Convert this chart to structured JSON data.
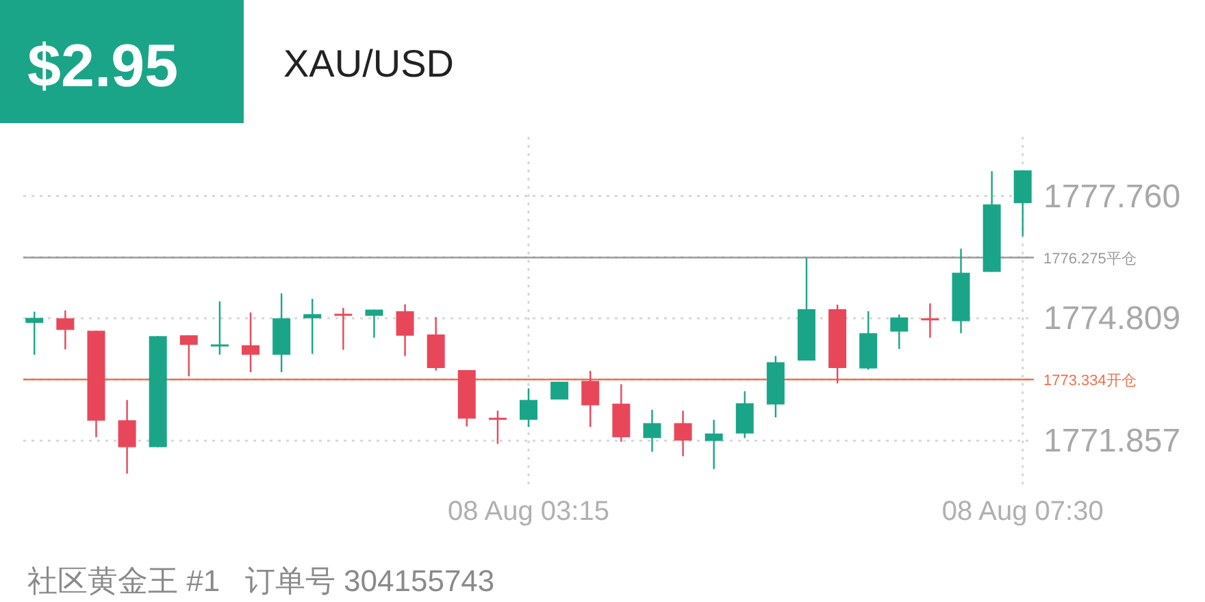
{
  "chart_data": {
    "type": "candlestick",
    "title": "XAU/USD",
    "subtitle": "$2.95",
    "annotations": [
      "社区黄金王 #1   订单号 304155743"
    ],
    "categories": [
      null,
      null,
      null,
      null,
      null,
      null,
      null,
      null,
      null,
      null,
      null,
      null,
      null,
      null,
      null,
      null,
      "08 Aug 03:15",
      null,
      null,
      null,
      null,
      null,
      null,
      null,
      null,
      null,
      null,
      null,
      null,
      null,
      null,
      null,
      "08 Aug 07:30"
    ],
    "ohlc": [
      [
        1774.7,
        1774.97,
        1773.93,
        1774.82
      ],
      [
        1774.81,
        1775.0,
        1774.06,
        1774.53
      ],
      [
        1774.51,
        1774.51,
        1771.94,
        1772.34
      ],
      [
        1772.35,
        1772.84,
        1771.06,
        1771.7
      ],
      [
        1771.7,
        1774.38,
        1771.7,
        1774.38
      ],
      [
        1774.4,
        1774.4,
        1773.41,
        1774.17
      ],
      [
        1774.13,
        1775.22,
        1773.93,
        1774.18
      ],
      [
        1774.16,
        1774.95,
        1773.51,
        1773.93
      ],
      [
        1773.93,
        1775.41,
        1773.51,
        1774.81
      ],
      [
        1774.81,
        1775.28,
        1773.95,
        1774.91
      ],
      [
        1774.92,
        1775.06,
        1774.05,
        1774.88
      ],
      [
        1774.87,
        1775.02,
        1774.34,
        1775.02
      ],
      [
        1774.98,
        1775.15,
        1773.9,
        1774.39
      ],
      [
        1774.42,
        1774.84,
        1773.55,
        1773.61
      ],
      [
        1773.56,
        1773.56,
        1772.2,
        1772.39
      ],
      [
        1772.41,
        1772.58,
        1771.78,
        1772.39
      ],
      [
        1772.36,
        1773.12,
        1772.19,
        1772.84
      ],
      [
        1772.85,
        1773.28,
        1772.85,
        1773.28
      ],
      [
        1773.3,
        1773.54,
        1772.19,
        1772.71
      ],
      [
        1772.75,
        1773.22,
        1771.83,
        1771.94
      ],
      [
        1771.92,
        1772.6,
        1771.59,
        1772.28
      ],
      [
        1772.28,
        1772.58,
        1771.48,
        1771.86
      ],
      [
        1771.85,
        1772.36,
        1771.17,
        1772.03
      ],
      [
        1772.03,
        1773.05,
        1771.92,
        1772.76
      ],
      [
        1772.73,
        1773.9,
        1772.42,
        1773.75
      ],
      [
        1773.79,
        1776.27,
        1773.79,
        1775.03
      ],
      [
        1775.03,
        1775.14,
        1773.24,
        1773.61
      ],
      [
        1773.6,
        1774.98,
        1773.57,
        1774.45
      ],
      [
        1774.49,
        1774.9,
        1774.07,
        1774.83
      ],
      [
        1774.81,
        1775.17,
        1774.34,
        1774.77
      ],
      [
        1774.74,
        1776.49,
        1774.45,
        1775.91
      ],
      [
        1775.93,
        1778.36,
        1775.93,
        1777.56
      ],
      [
        1777.59,
        1778.38,
        1776.79,
        1778.38
      ]
    ],
    "colors": [
      "#1aa588",
      "#e8475a",
      "#e8475a",
      "#e8475a",
      "#1aa588",
      "#e8475a",
      "#1aa588",
      "#e8475a",
      "#1aa588",
      "#1aa588",
      "#e8475a",
      "#1aa588",
      "#e8475a",
      "#e8475a",
      "#e8475a",
      "#e8475a",
      "#1aa588",
      "#1aa588",
      "#e8475a",
      "#e8475a",
      "#1aa588",
      "#e8475a",
      "#1aa588",
      "#1aa588",
      "#1aa588",
      "#1aa588",
      "#e8475a",
      "#1aa588",
      "#1aa588",
      "#e8475a",
      "#1aa588",
      "#1aa588",
      "#1aa588"
    ],
    "ylim": [
      1770.77,
      1779.19
    ],
    "yticks": [
      1771.857,
      {
        "value": 1773.333,
        "label": null
      },
      1774.809,
      {
        "value": 1776.284,
        "label": null
      },
      {
        "value": 1777.76,
        "label": "1777.760"
      }
    ],
    "grid": true,
    "ref_lines": [
      {
        "axis": "y",
        "value": 1776.275,
        "label": "1776.275平仓",
        "color": "#9a9a9a"
      },
      {
        "axis": "y",
        "value": 1773.334,
        "label": "1773.334开仓",
        "color": "#f0704c"
      }
    ]
  }
}
